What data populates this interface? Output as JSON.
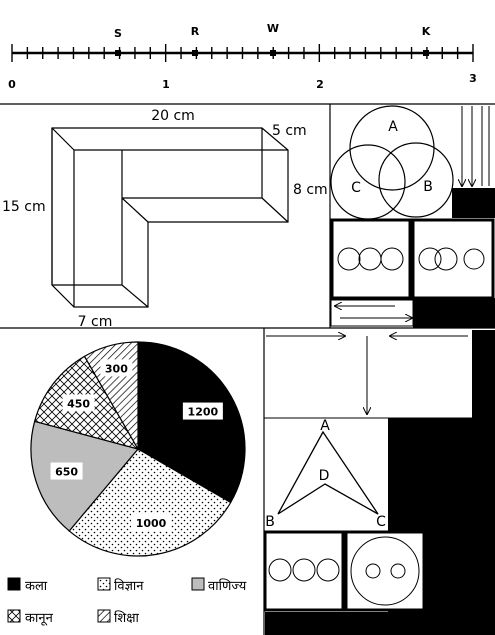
{
  "number_line": {
    "ticks": [
      "0",
      "1",
      "2",
      "3"
    ],
    "points": [
      "S",
      "R",
      "W",
      "K"
    ]
  },
  "solid": {
    "dims": [
      "20 cm",
      "5 cm",
      "8 cm",
      "15 cm",
      "7 cm"
    ]
  },
  "venn": {
    "labels": [
      "A",
      "C",
      "B"
    ]
  },
  "triangle": {
    "labels": [
      "A",
      "D",
      "B",
      "C"
    ]
  },
  "colors": {
    "kala": "#000000",
    "vanijya": "#bdbdbd",
    "line": "#000000"
  },
  "chart_data": {
    "type": "pie",
    "slices": [
      {
        "name": "कला",
        "value": 1200,
        "fill": "solid-black"
      },
      {
        "name": "विज्ञान",
        "value": 1000,
        "fill": "dots"
      },
      {
        "name": "वाणिज्य",
        "value": 650,
        "fill": "solid-gray"
      },
      {
        "name": "कानून",
        "value": 450,
        "fill": "crosshatch"
      },
      {
        "name": "शिक्षा",
        "value": 300,
        "fill": "diagonal"
      }
    ],
    "legend": [
      "कला",
      "विज्ञान",
      "वाणिज्य",
      "कानून",
      "शिक्षा"
    ]
  }
}
